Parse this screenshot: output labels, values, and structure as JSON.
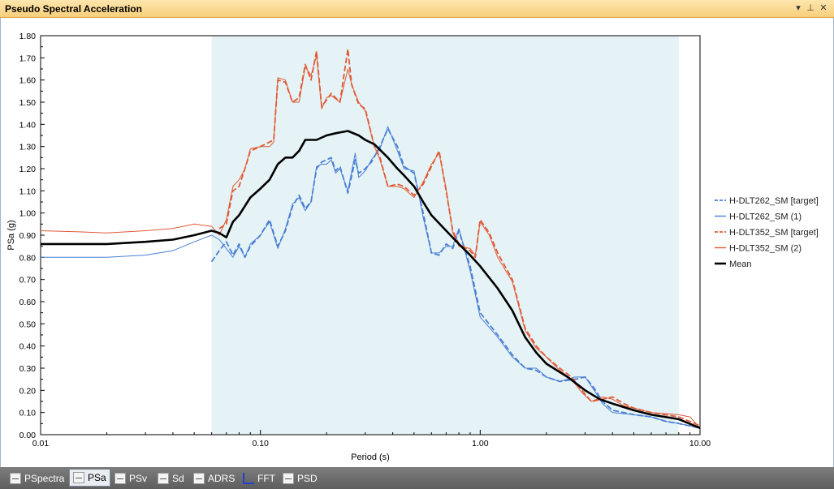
{
  "window": {
    "title": "Pseudo Spectral Acceleration",
    "dropdown_glyph": "▾",
    "pin_glyph": "⊥",
    "close_glyph": "✕"
  },
  "tabs": [
    {
      "label": "PSpectra",
      "icon": "pspectra-icon",
      "active": false
    },
    {
      "label": "PSa",
      "icon": "psa-icon",
      "active": true
    },
    {
      "label": "PSv",
      "icon": "psv-icon",
      "active": false
    },
    {
      "label": "Sd",
      "icon": "sd-icon",
      "active": false
    },
    {
      "label": "ADRS",
      "icon": "adrs-icon",
      "active": false
    },
    {
      "label": "FFT",
      "icon": "fft-icon",
      "active": false
    },
    {
      "label": "PSD",
      "icon": "psd-icon",
      "active": false
    }
  ],
  "chart_data": {
    "type": "line",
    "xlabel": "Period (s)",
    "ylabel": "PSa (g)",
    "xscale": "log",
    "xlim": [
      0.01,
      10
    ],
    "ylim": [
      0,
      1.8
    ],
    "x_ticks": [
      "0.01",
      "0.10",
      "1.00",
      "10.00"
    ],
    "y_ticks": [
      "0.00",
      "0.10",
      "0.20",
      "0.30",
      "0.40",
      "0.50",
      "0.60",
      "0.70",
      "0.80",
      "0.90",
      "1.00",
      "1.10",
      "1.20",
      "1.30",
      "1.40",
      "1.50",
      "1.60",
      "1.70",
      "1.80"
    ],
    "shaded_band": [
      0.06,
      8.0
    ],
    "legend_position": "right",
    "grid": false,
    "series": [
      {
        "name": "H-DLT262_SM [target]",
        "color": "#4a7fd4",
        "dash": true,
        "width": 1.8,
        "points": [
          [
            0.06,
            0.78
          ],
          [
            0.065,
            0.83
          ],
          [
            0.07,
            0.87
          ],
          [
            0.075,
            0.81
          ],
          [
            0.08,
            0.86
          ],
          [
            0.085,
            0.8
          ],
          [
            0.09,
            0.85
          ],
          [
            0.1,
            0.9
          ],
          [
            0.11,
            0.97
          ],
          [
            0.12,
            0.85
          ],
          [
            0.13,
            0.92
          ],
          [
            0.14,
            1.03
          ],
          [
            0.15,
            1.08
          ],
          [
            0.16,
            1.02
          ],
          [
            0.17,
            1.05
          ],
          [
            0.18,
            1.2
          ],
          [
            0.19,
            1.23
          ],
          [
            0.2,
            1.24
          ],
          [
            0.21,
            1.25
          ],
          [
            0.22,
            1.19
          ],
          [
            0.23,
            1.21
          ],
          [
            0.25,
            1.09
          ],
          [
            0.27,
            1.24
          ],
          [
            0.28,
            1.18
          ],
          [
            0.3,
            1.2
          ],
          [
            0.32,
            1.23
          ],
          [
            0.35,
            1.3
          ],
          [
            0.38,
            1.38
          ],
          [
            0.42,
            1.3
          ],
          [
            0.45,
            1.21
          ],
          [
            0.5,
            1.18
          ],
          [
            0.55,
            1.0
          ],
          [
            0.6,
            0.82
          ],
          [
            0.65,
            0.81
          ],
          [
            0.7,
            0.86
          ],
          [
            0.75,
            0.84
          ],
          [
            0.8,
            0.92
          ],
          [
            0.9,
            0.76
          ],
          [
            1.0,
            0.55
          ],
          [
            1.2,
            0.45
          ],
          [
            1.4,
            0.36
          ],
          [
            1.6,
            0.3
          ],
          [
            1.8,
            0.29
          ],
          [
            2.0,
            0.26
          ],
          [
            2.3,
            0.24
          ],
          [
            2.7,
            0.25
          ],
          [
            3.0,
            0.26
          ],
          [
            3.3,
            0.21
          ],
          [
            3.6,
            0.15
          ],
          [
            4.0,
            0.11
          ],
          [
            5.0,
            0.09
          ],
          [
            6.0,
            0.08
          ],
          [
            7.0,
            0.06
          ],
          [
            8.0,
            0.05
          ],
          [
            10.0,
            0.03
          ]
        ]
      },
      {
        "name": "H-DLT262_SM (1)",
        "color": "#4a7fd4",
        "dash": false,
        "width": 1.0,
        "points": [
          [
            0.01,
            0.8
          ],
          [
            0.015,
            0.8
          ],
          [
            0.02,
            0.8
          ],
          [
            0.03,
            0.81
          ],
          [
            0.04,
            0.83
          ],
          [
            0.05,
            0.87
          ],
          [
            0.06,
            0.9
          ],
          [
            0.065,
            0.88
          ],
          [
            0.07,
            0.84
          ],
          [
            0.075,
            0.8
          ],
          [
            0.08,
            0.85
          ],
          [
            0.085,
            0.8
          ],
          [
            0.09,
            0.86
          ],
          [
            0.1,
            0.9
          ],
          [
            0.11,
            0.96
          ],
          [
            0.12,
            0.84
          ],
          [
            0.13,
            0.93
          ],
          [
            0.14,
            1.04
          ],
          [
            0.15,
            1.07
          ],
          [
            0.16,
            1.01
          ],
          [
            0.17,
            1.05
          ],
          [
            0.18,
            1.21
          ],
          [
            0.19,
            1.22
          ],
          [
            0.2,
            1.22
          ],
          [
            0.21,
            1.24
          ],
          [
            0.22,
            1.18
          ],
          [
            0.23,
            1.2
          ],
          [
            0.25,
            1.1
          ],
          [
            0.27,
            1.27
          ],
          [
            0.28,
            1.16
          ],
          [
            0.3,
            1.19
          ],
          [
            0.32,
            1.24
          ],
          [
            0.35,
            1.29
          ],
          [
            0.38,
            1.39
          ],
          [
            0.42,
            1.28
          ],
          [
            0.45,
            1.2
          ],
          [
            0.5,
            1.19
          ],
          [
            0.55,
            0.98
          ],
          [
            0.6,
            0.82
          ],
          [
            0.65,
            0.82
          ],
          [
            0.7,
            0.85
          ],
          [
            0.75,
            0.85
          ],
          [
            0.8,
            0.93
          ],
          [
            0.9,
            0.74
          ],
          [
            1.0,
            0.53
          ],
          [
            1.2,
            0.44
          ],
          [
            1.4,
            0.35
          ],
          [
            1.6,
            0.3
          ],
          [
            1.8,
            0.3
          ],
          [
            2.0,
            0.26
          ],
          [
            2.3,
            0.24
          ],
          [
            2.7,
            0.26
          ],
          [
            3.0,
            0.26
          ],
          [
            3.3,
            0.2
          ],
          [
            3.6,
            0.14
          ],
          [
            4.0,
            0.1
          ],
          [
            5.0,
            0.09
          ],
          [
            6.0,
            0.08
          ],
          [
            7.0,
            0.06
          ],
          [
            8.0,
            0.05
          ],
          [
            10.0,
            0.03
          ]
        ]
      },
      {
        "name": "H-DLT352_SM [target]",
        "color": "#e05a36",
        "dash": true,
        "width": 1.8,
        "points": [
          [
            0.065,
            0.93
          ],
          [
            0.07,
            0.95
          ],
          [
            0.075,
            1.1
          ],
          [
            0.08,
            1.12
          ],
          [
            0.085,
            1.2
          ],
          [
            0.09,
            1.28
          ],
          [
            0.1,
            1.3
          ],
          [
            0.11,
            1.32
          ],
          [
            0.115,
            1.33
          ],
          [
            0.12,
            1.6
          ],
          [
            0.13,
            1.59
          ],
          [
            0.14,
            1.5
          ],
          [
            0.15,
            1.52
          ],
          [
            0.16,
            1.67
          ],
          [
            0.17,
            1.6
          ],
          [
            0.18,
            1.73
          ],
          [
            0.19,
            1.48
          ],
          [
            0.2,
            1.51
          ],
          [
            0.21,
            1.54
          ],
          [
            0.23,
            1.5
          ],
          [
            0.25,
            1.74
          ],
          [
            0.26,
            1.58
          ],
          [
            0.28,
            1.49
          ],
          [
            0.3,
            1.47
          ],
          [
            0.33,
            1.3
          ],
          [
            0.35,
            1.25
          ],
          [
            0.38,
            1.12
          ],
          [
            0.42,
            1.13
          ],
          [
            0.45,
            1.12
          ],
          [
            0.5,
            1.08
          ],
          [
            0.55,
            1.13
          ],
          [
            0.6,
            1.21
          ],
          [
            0.65,
            1.28
          ],
          [
            0.7,
            1.1
          ],
          [
            0.75,
            0.92
          ],
          [
            0.8,
            0.86
          ],
          [
            0.9,
            0.83
          ],
          [
            0.95,
            0.8
          ],
          [
            1.0,
            0.97
          ],
          [
            1.1,
            0.91
          ],
          [
            1.2,
            0.82
          ],
          [
            1.4,
            0.7
          ],
          [
            1.6,
            0.48
          ],
          [
            1.8,
            0.4
          ],
          [
            2.0,
            0.35
          ],
          [
            2.3,
            0.3
          ],
          [
            2.6,
            0.26
          ],
          [
            2.9,
            0.2
          ],
          [
            3.2,
            0.15
          ],
          [
            3.6,
            0.16
          ],
          [
            4.0,
            0.17
          ],
          [
            4.5,
            0.14
          ],
          [
            5.0,
            0.12
          ],
          [
            6.0,
            0.1
          ],
          [
            8.0,
            0.08
          ],
          [
            10.0,
            0.04
          ]
        ]
      },
      {
        "name": "H-DLT352_SM (2)",
        "color": "#e05a36",
        "dash": false,
        "width": 1.0,
        "points": [
          [
            0.01,
            0.92
          ],
          [
            0.015,
            0.915
          ],
          [
            0.02,
            0.91
          ],
          [
            0.03,
            0.92
          ],
          [
            0.04,
            0.93
          ],
          [
            0.05,
            0.95
          ],
          [
            0.06,
            0.94
          ],
          [
            0.065,
            0.9
          ],
          [
            0.07,
            0.97
          ],
          [
            0.075,
            1.12
          ],
          [
            0.08,
            1.15
          ],
          [
            0.085,
            1.2
          ],
          [
            0.09,
            1.29
          ],
          [
            0.1,
            1.3
          ],
          [
            0.11,
            1.3
          ],
          [
            0.115,
            1.32
          ],
          [
            0.12,
            1.61
          ],
          [
            0.13,
            1.6
          ],
          [
            0.14,
            1.5
          ],
          [
            0.15,
            1.5
          ],
          [
            0.16,
            1.66
          ],
          [
            0.17,
            1.62
          ],
          [
            0.18,
            1.71
          ],
          [
            0.19,
            1.47
          ],
          [
            0.2,
            1.52
          ],
          [
            0.21,
            1.53
          ],
          [
            0.23,
            1.5
          ],
          [
            0.25,
            1.65
          ],
          [
            0.26,
            1.58
          ],
          [
            0.28,
            1.5
          ],
          [
            0.3,
            1.46
          ],
          [
            0.33,
            1.3
          ],
          [
            0.35,
            1.24
          ],
          [
            0.38,
            1.12
          ],
          [
            0.42,
            1.12
          ],
          [
            0.45,
            1.11
          ],
          [
            0.5,
            1.07
          ],
          [
            0.55,
            1.14
          ],
          [
            0.6,
            1.22
          ],
          [
            0.65,
            1.27
          ],
          [
            0.7,
            1.11
          ],
          [
            0.75,
            0.91
          ],
          [
            0.8,
            0.85
          ],
          [
            0.9,
            0.84
          ],
          [
            0.95,
            0.81
          ],
          [
            1.0,
            0.96
          ],
          [
            1.1,
            0.9
          ],
          [
            1.2,
            0.8
          ],
          [
            1.4,
            0.69
          ],
          [
            1.6,
            0.47
          ],
          [
            1.8,
            0.39
          ],
          [
            2.0,
            0.35
          ],
          [
            2.3,
            0.29
          ],
          [
            2.6,
            0.25
          ],
          [
            2.9,
            0.19
          ],
          [
            3.2,
            0.15
          ],
          [
            3.6,
            0.17
          ],
          [
            4.0,
            0.16
          ],
          [
            4.5,
            0.13
          ],
          [
            5.0,
            0.12
          ],
          [
            6.0,
            0.1
          ],
          [
            8.0,
            0.09
          ],
          [
            9.0,
            0.08
          ],
          [
            10.0,
            0.03
          ]
        ]
      },
      {
        "name": "Mean",
        "color": "#000000",
        "dash": false,
        "width": 2.6,
        "points": [
          [
            0.01,
            0.86
          ],
          [
            0.015,
            0.86
          ],
          [
            0.02,
            0.86
          ],
          [
            0.03,
            0.87
          ],
          [
            0.04,
            0.88
          ],
          [
            0.05,
            0.9
          ],
          [
            0.06,
            0.92
          ],
          [
            0.065,
            0.91
          ],
          [
            0.07,
            0.89
          ],
          [
            0.075,
            0.96
          ],
          [
            0.08,
            0.99
          ],
          [
            0.09,
            1.07
          ],
          [
            0.1,
            1.11
          ],
          [
            0.11,
            1.15
          ],
          [
            0.12,
            1.22
          ],
          [
            0.13,
            1.25
          ],
          [
            0.14,
            1.25
          ],
          [
            0.15,
            1.28
          ],
          [
            0.16,
            1.33
          ],
          [
            0.17,
            1.33
          ],
          [
            0.18,
            1.33
          ],
          [
            0.2,
            1.35
          ],
          [
            0.22,
            1.36
          ],
          [
            0.25,
            1.37
          ],
          [
            0.28,
            1.35
          ],
          [
            0.3,
            1.33
          ],
          [
            0.33,
            1.31
          ],
          [
            0.38,
            1.25
          ],
          [
            0.42,
            1.2
          ],
          [
            0.45,
            1.17
          ],
          [
            0.5,
            1.12
          ],
          [
            0.55,
            1.05
          ],
          [
            0.6,
            0.99
          ],
          [
            0.7,
            0.92
          ],
          [
            0.8,
            0.86
          ],
          [
            0.9,
            0.81
          ],
          [
            1.0,
            0.76
          ],
          [
            1.2,
            0.66
          ],
          [
            1.4,
            0.56
          ],
          [
            1.6,
            0.44
          ],
          [
            1.8,
            0.37
          ],
          [
            2.0,
            0.32
          ],
          [
            2.5,
            0.26
          ],
          [
            3.0,
            0.2
          ],
          [
            3.5,
            0.16
          ],
          [
            4.0,
            0.14
          ],
          [
            5.0,
            0.11
          ],
          [
            6.0,
            0.09
          ],
          [
            8.0,
            0.07
          ],
          [
            10.0,
            0.03
          ]
        ]
      }
    ]
  }
}
